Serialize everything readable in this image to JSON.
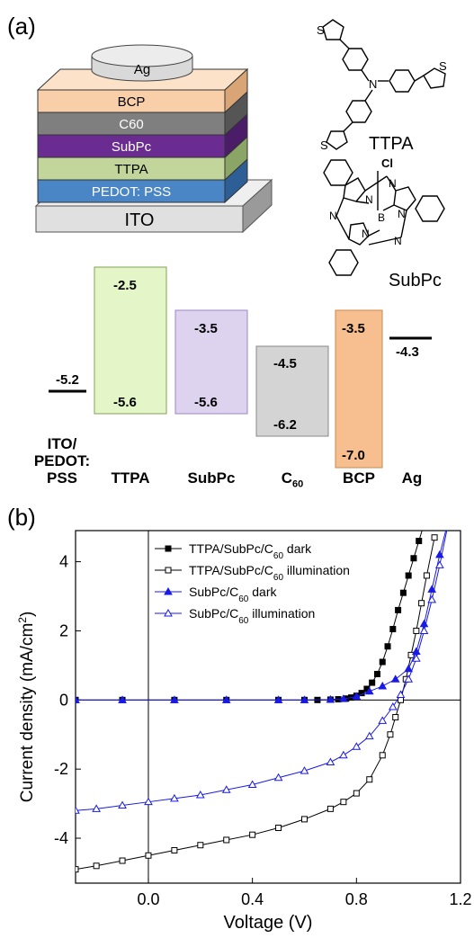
{
  "panel_a": {
    "label": "(a)",
    "stack": {
      "top_electrode": "Ag",
      "layers": [
        "BCP",
        "C60",
        "SubPc",
        "TTPA",
        "PEDOT: PSS"
      ],
      "substrate": "ITO",
      "colors": {
        "Ag": "#d9d9d9",
        "BCP": "#f8cfa8",
        "C60": "#7f7f7f",
        "SubPc": "#6a2c91",
        "TTPA": "#c2d59b",
        "PEDOT": "#4a86c5",
        "ITO": "#e0e0e0"
      }
    },
    "molecules": [
      {
        "label": "TTPA",
        "atoms": [
          "S",
          "S",
          "S",
          "N"
        ]
      },
      {
        "label": "SubPc",
        "atoms": [
          "Cl",
          "N",
          "N",
          "N",
          "N",
          "N",
          "N",
          "B"
        ]
      }
    ],
    "energy_levels": [
      {
        "name_lines": [
          "ITO/",
          "PEDOT:",
          "PSS"
        ],
        "level": "-5.2",
        "color": "#000000"
      },
      {
        "name_lines": [
          "TTPA"
        ],
        "lumo": "-2.5",
        "homo": "-5.6",
        "color": "#e4f6c8"
      },
      {
        "name_lines": [
          "SubPc"
        ],
        "lumo": "-3.5",
        "homo": "-5.6",
        "color": "#ddd3ef"
      },
      {
        "name_lines": [
          "C",
          "60"
        ],
        "lumo": "-4.5",
        "homo": "-6.2",
        "color": "#d4d4d4"
      },
      {
        "name_lines": [
          "BCP"
        ],
        "lumo": "-3.5",
        "homo": "-7.0",
        "color": "#f7bf8f"
      },
      {
        "name_lines": [
          "Ag"
        ],
        "level": "-4.3",
        "color": "#000000"
      }
    ]
  },
  "panel_b": {
    "label": "(b)",
    "chart_data": {
      "type": "line",
      "xlabel": "Voltage (V)",
      "ylabel": "Current density (mA/cm²)",
      "ylabel_main": "Current density (mA/cm",
      "ylabel_sup": "2",
      "ylabel_close": ")",
      "xlim": [
        -0.28,
        1.2
      ],
      "ylim": [
        -5.3,
        4.9
      ],
      "xticks": [
        0.0,
        0.4,
        0.8,
        1.2
      ],
      "xtick_labels": [
        "0.0",
        "0.4",
        "0.8",
        "1.2"
      ],
      "yticks": [
        -4,
        -2,
        0,
        2,
        4
      ],
      "ytick_labels": [
        "-4",
        "-2",
        "0",
        "2",
        "4"
      ],
      "legend_position": "top-right",
      "series": [
        {
          "name": "TTPA/SubPc/C60 dark",
          "name_main": "TTPA/SubPc/C",
          "name_sub": "60",
          "name_tail": " dark",
          "color": "#000000",
          "marker": "square",
          "filled": true,
          "x": [
            -0.28,
            -0.1,
            0.1,
            0.3,
            0.5,
            0.6,
            0.65,
            0.7,
            0.73,
            0.76,
            0.78,
            0.8,
            0.82,
            0.84,
            0.86,
            0.88,
            0.9,
            0.92,
            0.94,
            0.96,
            0.98,
            1.0,
            1.02,
            1.04,
            1.06
          ],
          "y": [
            0,
            0,
            0,
            0,
            0,
            0,
            0,
            0.01,
            0.02,
            0.04,
            0.07,
            0.12,
            0.2,
            0.32,
            0.5,
            0.75,
            1.1,
            1.55,
            2.05,
            2.6,
            3.1,
            3.6,
            4.1,
            4.6,
            5.1
          ]
        },
        {
          "name": "TTPA/SubPc/C60 illumination",
          "name_main": "TTPA/SubPc/C",
          "name_sub": "60",
          "name_tail": " illumination",
          "color": "#000000",
          "marker": "square",
          "filled": false,
          "x": [
            -0.28,
            -0.2,
            -0.1,
            0.0,
            0.1,
            0.2,
            0.3,
            0.4,
            0.5,
            0.6,
            0.7,
            0.75,
            0.8,
            0.85,
            0.9,
            0.93,
            0.95,
            0.97,
            0.99,
            1.01,
            1.03,
            1.05,
            1.07,
            1.1
          ],
          "y": [
            -4.9,
            -4.8,
            -4.65,
            -4.5,
            -4.35,
            -4.2,
            -4.05,
            -3.9,
            -3.7,
            -3.45,
            -3.15,
            -2.95,
            -2.7,
            -2.3,
            -1.6,
            -1.0,
            -0.5,
            0.0,
            0.6,
            1.3,
            2.0,
            2.8,
            3.6,
            4.7
          ]
        },
        {
          "name": "SubPc/C60 dark",
          "name_main": "SubPc/C",
          "name_sub": "60",
          "name_tail": " dark",
          "color": "#1a1ae6",
          "marker": "triangle",
          "filled": true,
          "x": [
            -0.28,
            -0.1,
            0.1,
            0.3,
            0.5,
            0.6,
            0.7,
            0.75,
            0.8,
            0.85,
            0.9,
            0.95,
            1.0,
            1.03,
            1.06,
            1.09,
            1.12,
            1.15
          ],
          "y": [
            0,
            0,
            0,
            0,
            0,
            0,
            0.01,
            0.03,
            0.1,
            0.25,
            0.4,
            0.6,
            0.9,
            1.4,
            2.2,
            3.2,
            4.2,
            5.1
          ]
        },
        {
          "name": "SubPc/C60 illumination",
          "name_main": "SubPc/C",
          "name_sub": "60",
          "name_tail": " illumination",
          "color": "#1a1ae6",
          "marker": "triangle",
          "filled": false,
          "x": [
            -0.28,
            -0.2,
            -0.1,
            0.0,
            0.1,
            0.2,
            0.3,
            0.4,
            0.5,
            0.6,
            0.7,
            0.75,
            0.8,
            0.85,
            0.9,
            0.94,
            0.97,
            1.0,
            1.03,
            1.06,
            1.09,
            1.12,
            1.15
          ],
          "y": [
            -3.2,
            -3.15,
            -3.05,
            -2.95,
            -2.85,
            -2.75,
            -2.6,
            -2.45,
            -2.25,
            -2.05,
            -1.8,
            -1.6,
            -1.35,
            -1.05,
            -0.6,
            -0.2,
            0.15,
            0.6,
            1.2,
            2.0,
            2.9,
            3.9,
            5.0
          ]
        }
      ]
    }
  }
}
